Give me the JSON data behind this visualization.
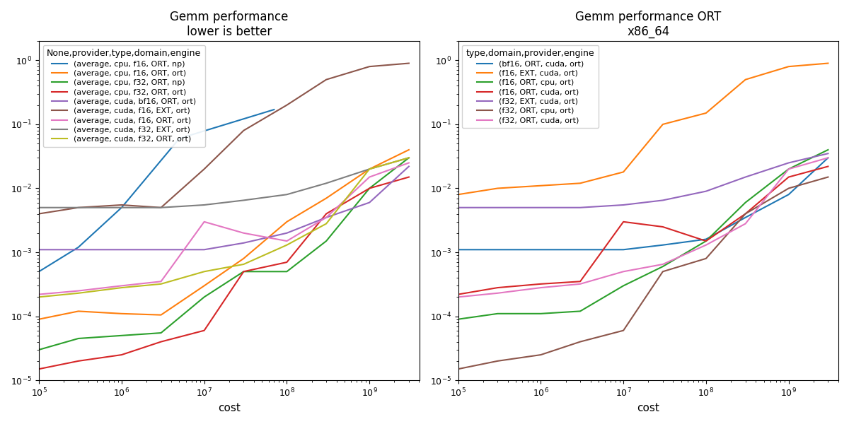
{
  "left": {
    "title": "Gemm performance\nlower is better",
    "xlabel": "cost",
    "legend_title": "None,provider,type,domain,engine",
    "xlim": [
      100000.0,
      4000000000.0
    ],
    "ylim": [
      1e-05,
      2.0
    ],
    "series": [
      {
        "label": "(average, cpu, f16, ORT, np)",
        "color": "#1f77b4",
        "x": [
          100000.0,
          300000.0,
          1000000.0,
          5000000.0,
          70000000.0
        ],
        "y": [
          0.0005,
          0.0012,
          0.005,
          0.06,
          0.17
        ]
      },
      {
        "label": "(average, cpu, f16, ORT, ort)",
        "color": "#ff7f0e",
        "x": [
          100000.0,
          300000.0,
          1000000.0,
          3000000.0,
          10000000.0,
          30000000.0,
          100000000.0,
          300000000.0,
          1000000000.0,
          3000000000.0
        ],
        "y": [
          9e-05,
          0.00012,
          0.00011,
          0.000105,
          0.0003,
          0.0008,
          0.003,
          0.007,
          0.02,
          0.04
        ]
      },
      {
        "label": "(average, cpu, f32, ORT, np)",
        "color": "#2ca02c",
        "x": [
          100000.0,
          300000.0,
          1000000.0,
          3000000.0,
          10000000.0,
          30000000.0,
          100000000.0,
          300000000.0,
          1000000000.0,
          3000000000.0
        ],
        "y": [
          3e-05,
          4.5e-05,
          5e-05,
          5.5e-05,
          0.0002,
          0.0005,
          0.0005,
          0.0015,
          0.01,
          0.03
        ]
      },
      {
        "label": "(average, cpu, f32, ORT, ort)",
        "color": "#d62728",
        "x": [
          100000.0,
          300000.0,
          1000000.0,
          3000000.0,
          10000000.0,
          30000000.0,
          100000000.0,
          300000000.0,
          1000000000.0,
          3000000000.0
        ],
        "y": [
          1.5e-05,
          2e-05,
          2.5e-05,
          4e-05,
          6e-05,
          0.0005,
          0.0007,
          0.004,
          0.01,
          0.015
        ]
      },
      {
        "label": "(average, cuda, bf16, ORT, ort)",
        "color": "#9467bd",
        "x": [
          100000.0,
          300000.0,
          1000000.0,
          3000000.0,
          10000000.0,
          30000000.0,
          100000000.0,
          300000000.0,
          1000000000.0,
          3000000000.0
        ],
        "y": [
          0.0011,
          0.0011,
          0.0011,
          0.0011,
          0.0011,
          0.0014,
          0.002,
          0.0035,
          0.006,
          0.022
        ]
      },
      {
        "label": "(average, cuda, f16, EXT, ort)",
        "color": "#8c564b",
        "x": [
          100000.0,
          300000.0,
          1000000.0,
          3000000.0,
          10000000.0,
          30000000.0,
          100000000.0,
          300000000.0,
          1000000000.0,
          3000000000.0
        ],
        "y": [
          0.004,
          0.005,
          0.0055,
          0.005,
          0.02,
          0.08,
          0.2,
          0.5,
          0.8,
          0.9
        ]
      },
      {
        "label": "(average, cuda, f16, ORT, ort)",
        "color": "#e377c2",
        "x": [
          100000.0,
          300000.0,
          1000000.0,
          3000000.0,
          10000000.0,
          30000000.0,
          100000000.0,
          300000000.0,
          1000000000.0,
          3000000000.0
        ],
        "y": [
          0.00022,
          0.00025,
          0.0003,
          0.00035,
          0.003,
          0.002,
          0.0015,
          0.0035,
          0.015,
          0.025
        ]
      },
      {
        "label": "(average, cuda, f32, EXT, ort)",
        "color": "#7f7f7f",
        "x": [
          100000.0,
          300000.0,
          1000000.0,
          3000000.0,
          10000000.0,
          30000000.0,
          100000000.0,
          300000000.0,
          1000000000.0,
          3000000000.0
        ],
        "y": [
          0.005,
          0.005,
          0.005,
          0.005,
          0.0055,
          0.0065,
          0.008,
          0.012,
          0.02,
          0.03
        ]
      },
      {
        "label": "(average, cuda, f32, ORT, ort)",
        "color": "#bcbd22",
        "x": [
          100000.0,
          300000.0,
          1000000.0,
          3000000.0,
          10000000.0,
          30000000.0,
          100000000.0,
          300000000.0,
          1000000000.0,
          3000000000.0
        ],
        "y": [
          0.0002,
          0.00023,
          0.00028,
          0.00032,
          0.0005,
          0.00065,
          0.0013,
          0.0028,
          0.02,
          0.03
        ]
      }
    ]
  },
  "right": {
    "title": "Gemm performance ORT\nx86_64",
    "xlabel": "cost",
    "legend_title": "type,domain,provider,engine",
    "xlim": [
      100000.0,
      4000000000.0
    ],
    "ylim": [
      1e-05,
      2.0
    ],
    "series": [
      {
        "label": "(bf16, ORT, cuda, ort)",
        "color": "#1f77b4",
        "x": [
          100000.0,
          300000.0,
          1000000.0,
          3000000.0,
          10000000.0,
          30000000.0,
          100000000.0,
          300000000.0,
          1000000000.0,
          3000000000.0
        ],
        "y": [
          0.0011,
          0.0011,
          0.0011,
          0.0011,
          0.0011,
          0.0013,
          0.0016,
          0.0035,
          0.008,
          0.03
        ]
      },
      {
        "label": "(f16, EXT, cuda, ort)",
        "color": "#ff7f0e",
        "x": [
          100000.0,
          300000.0,
          1000000.0,
          3000000.0,
          10000000.0,
          30000000.0,
          100000000.0,
          300000000.0,
          1000000000.0,
          3000000000.0
        ],
        "y": [
          0.008,
          0.01,
          0.011,
          0.012,
          0.018,
          0.1,
          0.15,
          0.5,
          0.8,
          0.9
        ]
      },
      {
        "label": "(f16, ORT, cpu, ort)",
        "color": "#2ca02c",
        "x": [
          100000.0,
          300000.0,
          1000000.0,
          3000000.0,
          10000000.0,
          30000000.0,
          100000000.0,
          300000000.0,
          1000000000.0,
          3000000000.0
        ],
        "y": [
          9e-05,
          0.00011,
          0.00011,
          0.00012,
          0.0003,
          0.0006,
          0.0015,
          0.006,
          0.02,
          0.04
        ]
      },
      {
        "label": "(f16, ORT, cuda, ort)",
        "color": "#d62728",
        "x": [
          100000.0,
          300000.0,
          1000000.0,
          3000000.0,
          10000000.0,
          30000000.0,
          100000000.0,
          300000000.0,
          1000000000.0,
          3000000000.0
        ],
        "y": [
          0.00022,
          0.00028,
          0.00032,
          0.00035,
          0.003,
          0.0025,
          0.0015,
          0.004,
          0.015,
          0.022
        ]
      },
      {
        "label": "(f32, EXT, cuda, ort)",
        "color": "#9467bd",
        "x": [
          100000.0,
          300000.0,
          1000000.0,
          3000000.0,
          10000000.0,
          30000000.0,
          100000000.0,
          300000000.0,
          1000000000.0,
          3000000000.0
        ],
        "y": [
          0.005,
          0.005,
          0.005,
          0.005,
          0.0055,
          0.0065,
          0.009,
          0.015,
          0.025,
          0.035
        ]
      },
      {
        "label": "(f32, ORT, cpu, ort)",
        "color": "#8c564b",
        "x": [
          100000.0,
          300000.0,
          1000000.0,
          3000000.0,
          10000000.0,
          30000000.0,
          100000000.0,
          300000000.0,
          1000000000.0,
          3000000000.0
        ],
        "y": [
          1.5e-05,
          2e-05,
          2.5e-05,
          4e-05,
          6e-05,
          0.0005,
          0.0008,
          0.004,
          0.01,
          0.015
        ]
      },
      {
        "label": "(f32, ORT, cuda, ort)",
        "color": "#e377c2",
        "x": [
          100000.0,
          300000.0,
          1000000.0,
          3000000.0,
          10000000.0,
          30000000.0,
          100000000.0,
          300000000.0,
          1000000000.0,
          3000000000.0
        ],
        "y": [
          0.0002,
          0.00023,
          0.00028,
          0.00032,
          0.0005,
          0.00065,
          0.0013,
          0.0028,
          0.02,
          0.03
        ]
      }
    ]
  }
}
